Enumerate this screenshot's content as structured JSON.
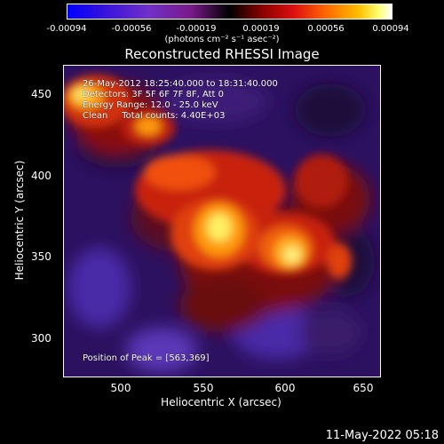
{
  "colorbar": {
    "ticks": [
      "-0.00094",
      "-0.00056",
      "-0.00019",
      "0.00019",
      "0.00056",
      "0.00094"
    ],
    "units": "(photons cm⁻² s⁻¹ asec⁻²)"
  },
  "image": {
    "title": "Reconstructed RHESSI Image",
    "annotations": [
      "26-May-2012 18:25:40.000 to 18:31:40.000",
      "Detectors: 3F 5F 6F 7F 8F, Att 0",
      "Energy Range: 12.0 - 25.0 keV",
      "Clean     Total counts: 4.40E+03"
    ],
    "peak_text": "Position of Peak = [563,369]",
    "xlabel": "Heliocentric X (arcsec)",
    "ylabel": "Heliocentric Y (arcsec)",
    "xticks": [
      "500",
      "550",
      "600",
      "650"
    ],
    "yticks": [
      "450",
      "400",
      "350",
      "300"
    ]
  },
  "timestamp": "11-May-2022 05:18"
}
